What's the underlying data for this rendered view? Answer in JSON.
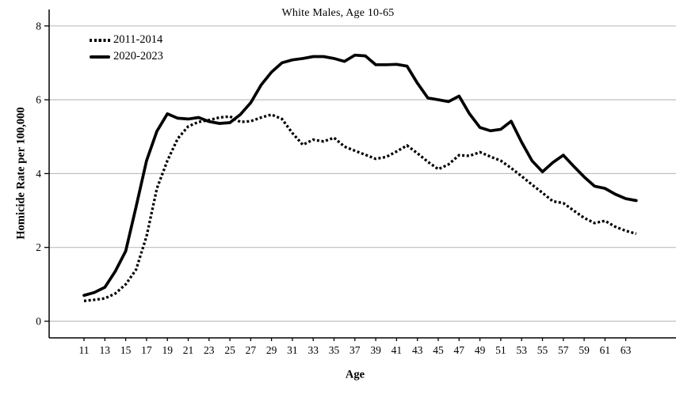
{
  "chart_data": {
    "type": "line",
    "title": "White Males, Age 10-65",
    "xlabel": "Age",
    "ylabel": "Homicide Rate per 100,000",
    "ylim": [
      0,
      8
    ],
    "yticks": [
      0,
      2,
      4,
      6,
      8
    ],
    "xticks": [
      11,
      13,
      15,
      17,
      19,
      21,
      23,
      25,
      27,
      29,
      31,
      33,
      35,
      37,
      39,
      41,
      43,
      45,
      47,
      49,
      51,
      53,
      55,
      57,
      59,
      61,
      63
    ],
    "grid": true,
    "legend_position": "top-left",
    "colors": {
      "grid": "#bfbfbf",
      "axis": "#000000",
      "series": "#000000",
      "background": "#ffffff"
    },
    "x": [
      11,
      12,
      13,
      14,
      15,
      16,
      17,
      18,
      19,
      20,
      21,
      22,
      23,
      24,
      25,
      26,
      27,
      28,
      29,
      30,
      31,
      32,
      33,
      34,
      35,
      36,
      37,
      38,
      39,
      40,
      41,
      42,
      43,
      44,
      45,
      46,
      47,
      48,
      49,
      50,
      51,
      52,
      53,
      54,
      55,
      56,
      57,
      58,
      59,
      60,
      61,
      62,
      63,
      64
    ],
    "series": [
      {
        "name": "2011-2014",
        "line_style": "dotted",
        "color": "#000000",
        "values": [
          0.55,
          0.58,
          0.62,
          0.75,
          1.0,
          1.4,
          2.3,
          3.6,
          4.35,
          4.95,
          5.28,
          5.4,
          5.45,
          5.52,
          5.55,
          5.4,
          5.42,
          5.52,
          5.6,
          5.48,
          5.1,
          4.78,
          4.92,
          4.87,
          4.97,
          4.73,
          4.62,
          4.51,
          4.4,
          4.45,
          4.6,
          4.76,
          4.55,
          4.32,
          4.12,
          4.25,
          4.5,
          4.48,
          4.58,
          4.46,
          4.35,
          4.15,
          3.93,
          3.7,
          3.48,
          3.25,
          3.2,
          3.0,
          2.8,
          2.66,
          2.72,
          2.56,
          2.45,
          2.37
        ]
      },
      {
        "name": "2020-2023",
        "line_style": "solid",
        "color": "#000000",
        "values": [
          0.7,
          0.78,
          0.92,
          1.35,
          1.9,
          3.1,
          4.35,
          5.15,
          5.62,
          5.5,
          5.48,
          5.52,
          5.41,
          5.36,
          5.38,
          5.6,
          5.92,
          6.4,
          6.75,
          7.0,
          7.08,
          7.12,
          7.17,
          7.17,
          7.12,
          7.04,
          7.21,
          7.19,
          6.95,
          6.95,
          6.96,
          6.91,
          6.45,
          6.05,
          6.0,
          5.95,
          6.1,
          5.62,
          5.25,
          5.16,
          5.2,
          5.42,
          4.85,
          4.35,
          4.05,
          4.3,
          4.5,
          4.2,
          3.91,
          3.66,
          3.6,
          3.44,
          3.32,
          3.27
        ]
      }
    ]
  }
}
